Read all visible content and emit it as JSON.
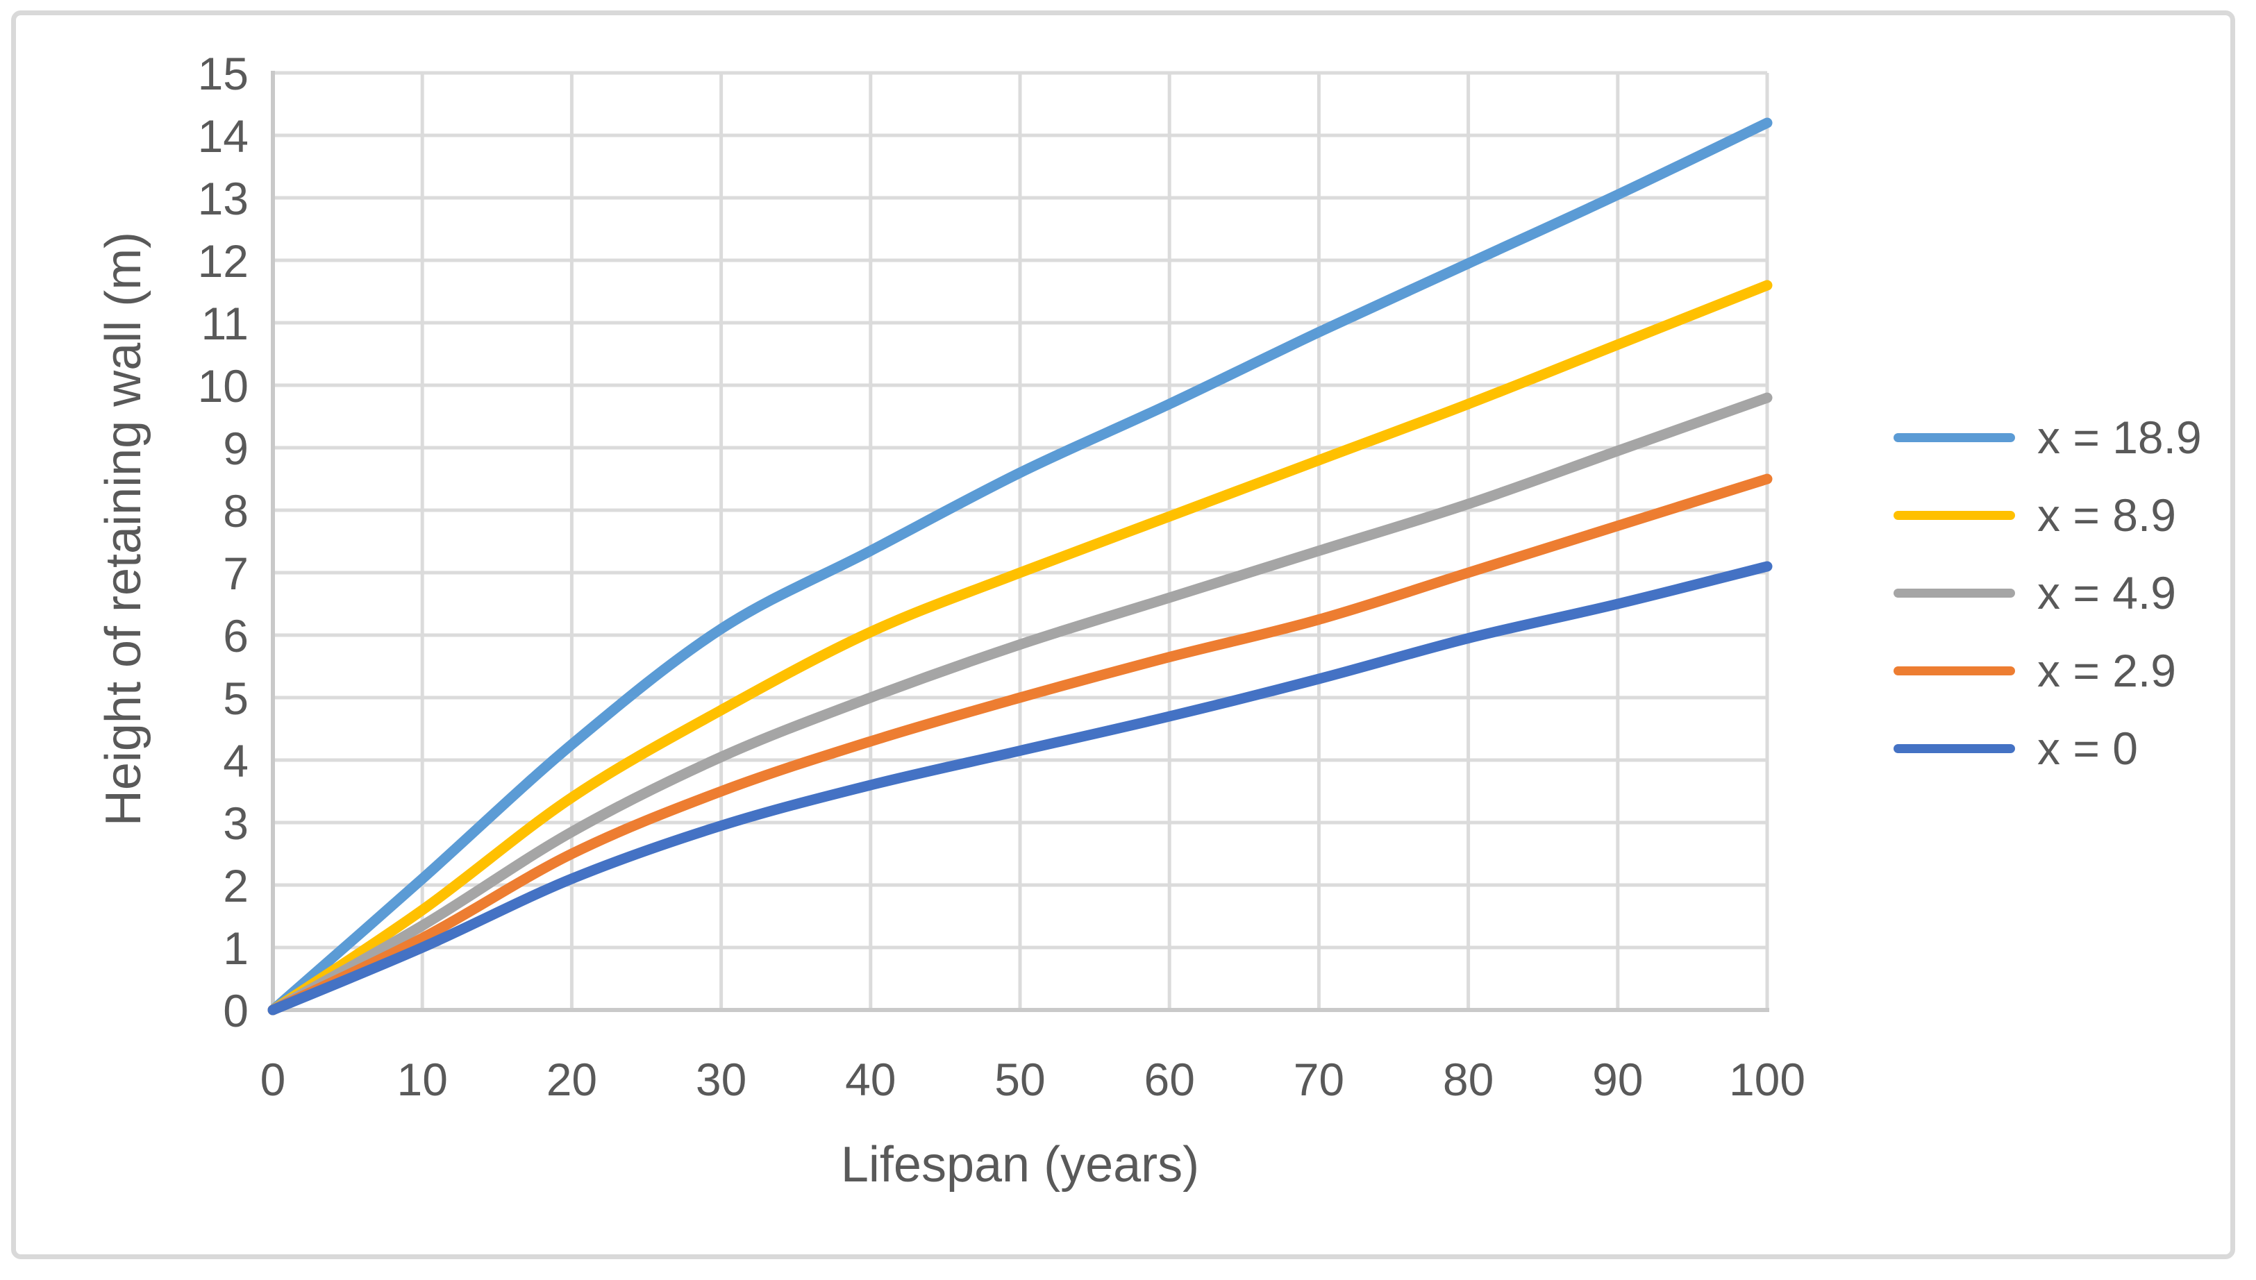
{
  "colors": {
    "background": "#FFFFFF",
    "frame_border": "#D9D9D9",
    "gridline": "#DBDBDB",
    "axis_line": "#C9C9C9",
    "text": "#595959"
  },
  "chart_data": {
    "type": "line",
    "title": "",
    "xlabel": "Lifespan (years)",
    "ylabel": "Height of retaining wall (m)",
    "xlim": [
      0,
      100
    ],
    "ylim": [
      0,
      15
    ],
    "x_ticks": [
      0,
      10,
      20,
      30,
      40,
      50,
      60,
      70,
      80,
      90,
      100
    ],
    "y_ticks": [
      0,
      1,
      2,
      3,
      4,
      5,
      6,
      7,
      8,
      9,
      10,
      11,
      12,
      13,
      14,
      15
    ],
    "grid": true,
    "legend_position": "right",
    "x": [
      0,
      10,
      20,
      30,
      40,
      50,
      60,
      70,
      80,
      90,
      100
    ],
    "series": [
      {
        "name": "x = 18.9",
        "color": "#5B9BD5",
        "values": [
          0,
          2.1,
          4.25,
          6.1,
          7.35,
          8.6,
          9.7,
          10.85,
          11.95,
          13.05,
          14.2
        ]
      },
      {
        "name": "x = 8.9",
        "color": "#FFC000",
        "values": [
          0,
          1.6,
          3.4,
          4.8,
          6.05,
          7.0,
          7.9,
          8.8,
          9.7,
          10.65,
          11.6
        ]
      },
      {
        "name": "x = 4.9",
        "color": "#A5A5A5",
        "values": [
          0,
          1.35,
          2.85,
          4.05,
          5.0,
          5.85,
          6.6,
          7.35,
          8.1,
          8.95,
          9.8
        ]
      },
      {
        "name": "x = 2.9",
        "color": "#ED7D31",
        "values": [
          0,
          1.15,
          2.5,
          3.5,
          4.3,
          5.0,
          5.65,
          6.25,
          7.0,
          7.75,
          8.5
        ]
      },
      {
        "name": "x = 0",
        "color": "#4472C4",
        "values": [
          0,
          1.0,
          2.1,
          2.95,
          3.6,
          4.15,
          4.7,
          5.3,
          5.95,
          6.5,
          7.1
        ]
      }
    ]
  }
}
